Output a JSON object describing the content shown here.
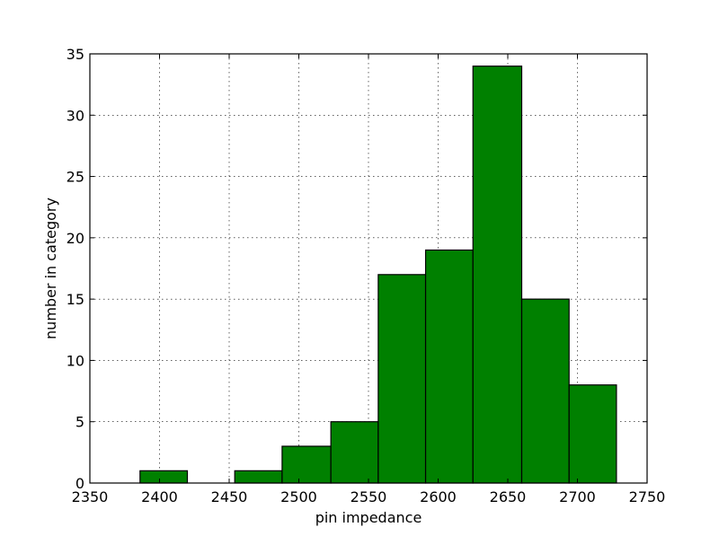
{
  "chart_data": {
    "type": "bar",
    "title": "",
    "xlabel": "pin impedance",
    "ylabel": "number in category",
    "xlim": [
      2350,
      2750
    ],
    "ylim": [
      0,
      35
    ],
    "xticks": [
      2350,
      2400,
      2450,
      2500,
      2550,
      2600,
      2650,
      2700,
      2750
    ],
    "yticks": [
      0,
      5,
      10,
      15,
      20,
      25,
      30,
      35
    ],
    "grid": true,
    "bar_color": "#008000",
    "bins": [
      {
        "x0": 2386,
        "x1": 2420,
        "count": 1
      },
      {
        "x0": 2420,
        "x1": 2454,
        "count": 0
      },
      {
        "x0": 2454,
        "x1": 2488,
        "count": 1
      },
      {
        "x0": 2488,
        "x1": 2523,
        "count": 3
      },
      {
        "x0": 2523,
        "x1": 2557,
        "count": 5
      },
      {
        "x0": 2557,
        "x1": 2591,
        "count": 17
      },
      {
        "x0": 2591,
        "x1": 2625,
        "count": 19
      },
      {
        "x0": 2625,
        "x1": 2660,
        "count": 34
      },
      {
        "x0": 2660,
        "x1": 2694,
        "count": 15
      },
      {
        "x0": 2694,
        "x1": 2728,
        "count": 8
      }
    ]
  }
}
